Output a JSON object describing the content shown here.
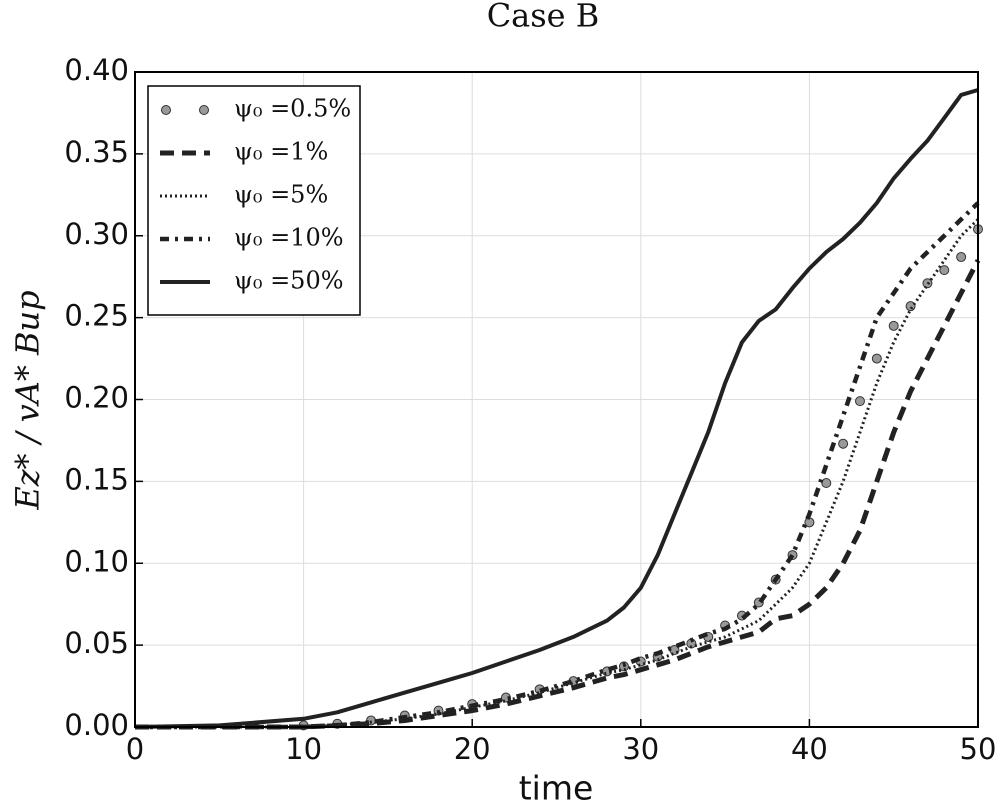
{
  "chart_data": {
    "type": "line",
    "title": "Case B",
    "xlabel": "time",
    "ylabel": "Ez* / vA* Bup",
    "x": [
      0,
      5,
      10,
      12,
      14,
      16,
      18,
      20,
      22,
      24,
      26,
      28,
      29,
      30,
      31,
      32,
      33,
      34,
      35,
      36,
      37,
      38,
      39,
      40,
      41,
      42,
      43,
      44,
      45,
      46,
      47,
      48,
      49,
      50
    ],
    "series": [
      {
        "name": "ψ₀ =0.5%",
        "color": "#999999",
        "style": "markers",
        "values": [
          null,
          null,
          0.001,
          0.002,
          0.004,
          0.007,
          0.01,
          0.014,
          0.018,
          0.023,
          0.028,
          0.034,
          0.037,
          0.04,
          0.043,
          0.047,
          0.051,
          0.055,
          0.062,
          0.068,
          0.076,
          0.09,
          0.105,
          0.125,
          0.149,
          0.173,
          0.199,
          0.225,
          0.245,
          0.257,
          0.271,
          0.279,
          0.287,
          0.304
        ]
      },
      {
        "name": "ψ₀ =1%",
        "color": "#222222",
        "style": "dashed",
        "values": [
          0,
          0,
          0,
          0.001,
          0.002,
          0.004,
          0.007,
          0.01,
          0.014,
          0.019,
          0.024,
          0.03,
          0.032,
          0.035,
          0.038,
          0.041,
          0.045,
          0.049,
          0.052,
          0.055,
          0.058,
          0.066,
          0.068,
          0.075,
          0.085,
          0.1,
          0.12,
          0.15,
          0.18,
          0.205,
          0.225,
          0.245,
          0.265,
          0.285
        ]
      },
      {
        "name": "ψ₀ =5%",
        "color": "#222222",
        "style": "dotted",
        "values": [
          0,
          0,
          0,
          0.001,
          0.003,
          0.005,
          0.008,
          0.012,
          0.016,
          0.021,
          0.027,
          0.033,
          0.035,
          0.038,
          0.041,
          0.045,
          0.049,
          0.052,
          0.055,
          0.06,
          0.065,
          0.075,
          0.085,
          0.1,
          0.125,
          0.15,
          0.18,
          0.21,
          0.235,
          0.255,
          0.27,
          0.285,
          0.3,
          0.31
        ]
      },
      {
        "name": "ψ₀ =10%",
        "color": "#222222",
        "style": "dashdot",
        "values": [
          0,
          0,
          0,
          0.001,
          0.003,
          0.006,
          0.009,
          0.013,
          0.017,
          0.022,
          0.028,
          0.035,
          0.038,
          0.042,
          0.045,
          0.049,
          0.053,
          0.057,
          0.06,
          0.066,
          0.075,
          0.09,
          0.105,
          0.13,
          0.16,
          0.19,
          0.22,
          0.25,
          0.265,
          0.28,
          0.29,
          0.3,
          0.31,
          0.32
        ]
      },
      {
        "name": "ψ₀ =50%",
        "color": "#222222",
        "style": "solid",
        "values": [
          0,
          0.001,
          0.005,
          0.009,
          0.015,
          0.021,
          0.027,
          0.033,
          0.04,
          0.047,
          0.055,
          0.065,
          0.073,
          0.085,
          0.105,
          0.13,
          0.155,
          0.18,
          0.21,
          0.235,
          0.248,
          0.255,
          0.268,
          0.28,
          0.29,
          0.298,
          0.308,
          0.32,
          0.335,
          0.347,
          0.358,
          0.372,
          0.386,
          0.389
        ]
      }
    ],
    "xlim": [
      0,
      50
    ],
    "xticks": [
      0,
      10,
      20,
      30,
      40,
      50
    ],
    "ylim": [
      0,
      0.4
    ],
    "yticks": [
      {
        "value": 0,
        "label": "0.00"
      },
      {
        "value": 0.05,
        "label": "0.05"
      },
      {
        "value": 0.1,
        "label": "0.10"
      },
      {
        "value": 0.15,
        "label": "0.15"
      },
      {
        "value": 0.2,
        "label": "0.20"
      },
      {
        "value": 0.25,
        "label": "0.25"
      },
      {
        "value": 0.3,
        "label": "0.30"
      },
      {
        "value": 0.35,
        "label": "0.35"
      },
      {
        "value": 0.4,
        "label": "0.40"
      }
    ],
    "grid": true,
    "legend": "upper left"
  }
}
